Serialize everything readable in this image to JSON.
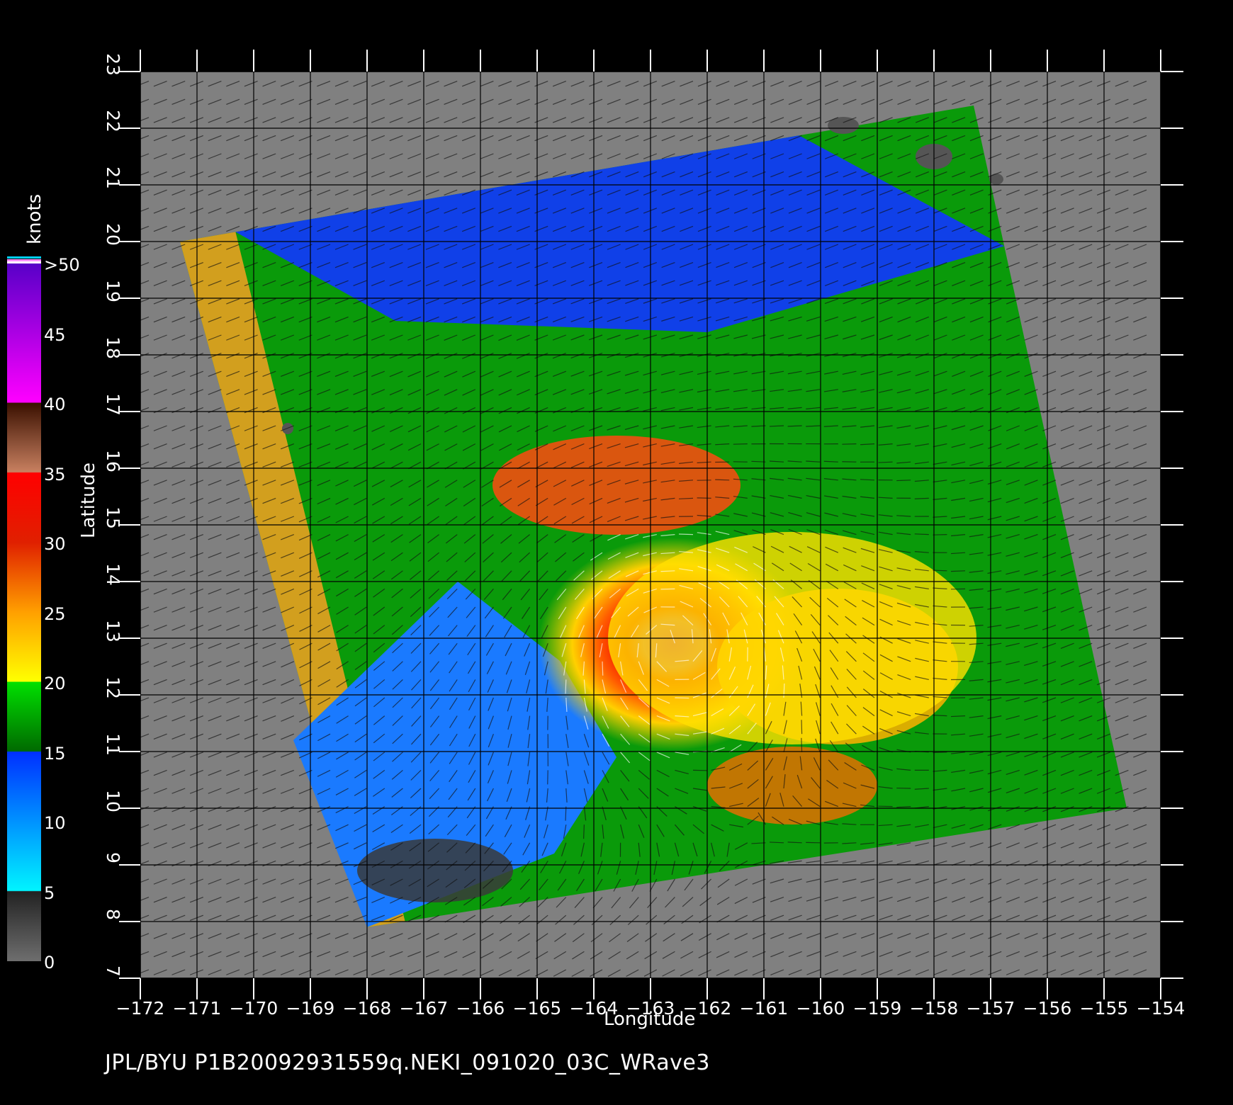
{
  "footer": "JPL/BYU  P1B20092931559q.NEKI_091020_03C_WRave3",
  "axes": {
    "xlabel": "Longitude",
    "ylabel": "Latitude",
    "x_ticks": [
      "−172",
      "−171",
      "−170",
      "−169",
      "−168",
      "−167",
      "−166",
      "−165",
      "−164",
      "−163",
      "−162",
      "−161",
      "−160",
      "−159",
      "−158",
      "−157",
      "−156",
      "−155",
      "−154"
    ],
    "y_ticks": [
      "7",
      "8",
      "9",
      "10",
      "11",
      "12",
      "13",
      "14",
      "15",
      "16",
      "17",
      "18",
      "19",
      "20",
      "21",
      "22",
      "23"
    ],
    "lon_range": [
      -172,
      -154
    ],
    "lat_range": [
      7,
      23
    ],
    "grid": true
  },
  "colorbar": {
    "unit": "knots",
    "labels": [
      ">50",
      "45",
      "40",
      "35",
      "30",
      "25",
      "20",
      "15",
      "10",
      "5",
      "0"
    ],
    "colors": {
      "0_5": [
        "#6e6e6e",
        "#2a2a2a"
      ],
      "5_15": [
        "#00f0ff",
        "#0028ff"
      ],
      "15_20": [
        "#007a00",
        "#00e000"
      ],
      "20_30": [
        "#ffff00",
        "#ff6a00",
        "#e02000"
      ],
      "30_35": [
        "#ff1010",
        "#f00000"
      ],
      "35_40": [
        "#c88060",
        "#3a1000"
      ],
      "40_50": [
        "#ff00ff",
        "#5000c0"
      ],
      "over": [
        "#ffffff",
        "#ff80ff",
        "#00d0ff"
      ]
    }
  },
  "map": {
    "background": "#808080",
    "swath_corners": [
      [
        -171.3,
        20.0
      ],
      [
        -157.3,
        22.4
      ],
      [
        -154.6,
        10.0
      ],
      [
        -168.0,
        7.9
      ]
    ],
    "storm_center": [
      -162.6,
      12.9
    ]
  }
}
